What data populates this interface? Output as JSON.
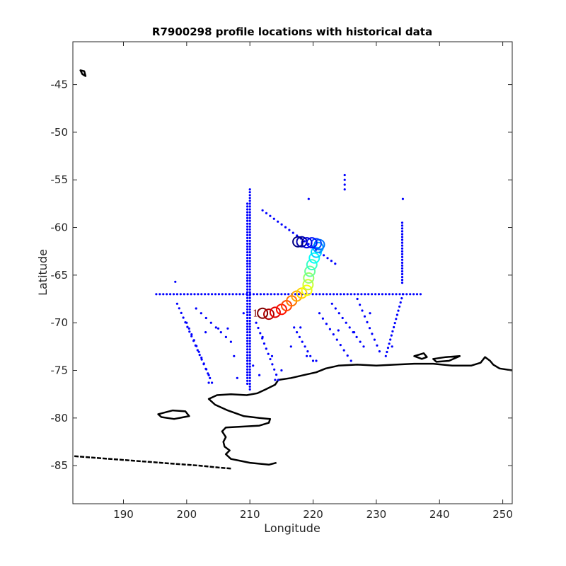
{
  "chart_data": {
    "type": "scatter",
    "title": "R7900298 profile locations with historical data",
    "xlabel": "Longitude",
    "ylabel": "Latitude",
    "xlim": [
      182,
      251.5
    ],
    "ylim": [
      -89,
      -40.5
    ],
    "xticks": [
      190,
      200,
      210,
      220,
      230,
      240,
      250
    ],
    "yticks": [
      -45,
      -50,
      -55,
      -60,
      -65,
      -70,
      -75,
      -80,
      -85
    ],
    "grid": false,
    "colors": {
      "historical": "#0000ff",
      "coastline": "#000000",
      "axes": "#262626"
    },
    "historical_data": {
      "horizontal_line": {
        "lat": -67,
        "lon_from": 195.2,
        "lon_to": 237.5,
        "step": 0.55
      },
      "vertical_lines": [
        {
          "lon": 209.6,
          "lat_from": -57.5,
          "lat_to": -76.6,
          "step": 0.3
        },
        {
          "lon": 210.0,
          "lat_from": -56.0,
          "lat_to": -77.0,
          "step": 0.3
        },
        {
          "lon": 234.1,
          "lat_from": -59.5,
          "lat_to": -66.0,
          "step": 0.3
        }
      ],
      "diagonal_lines": [
        {
          "from": [
            212.0,
            -58.2
          ],
          "to": [
            223.5,
            -63.8
          ],
          "n": 20
        },
        {
          "from": [
            198.5,
            -68.0
          ],
          "to": [
            204.0,
            -76.3
          ],
          "n": 18
        },
        {
          "from": [
            200.0,
            -70.0
          ],
          "to": [
            203.5,
            -75.5
          ],
          "n": 10
        },
        {
          "from": [
            201.5,
            -68.5
          ],
          "to": [
            207.0,
            -72.0
          ],
          "n": 8
        },
        {
          "from": [
            234.2,
            -67.0
          ],
          "to": [
            231.5,
            -73.5
          ],
          "n": 16
        },
        {
          "from": [
            223.0,
            -68.0
          ],
          "to": [
            228.0,
            -72.5
          ],
          "n": 10
        },
        {
          "from": [
            221.0,
            -69.0
          ],
          "to": [
            226.0,
            -74.0
          ],
          "n": 10
        },
        {
          "from": [
            227.0,
            -67.5
          ],
          "to": [
            230.5,
            -73.0
          ],
          "n": 10
        },
        {
          "from": [
            211.0,
            -70.0
          ],
          "to": [
            214.5,
            -76.0
          ],
          "n": 12
        },
        {
          "from": [
            217.0,
            -70.5
          ],
          "to": [
            220.0,
            -74.0
          ],
          "n": 8
        },
        {
          "from": [
            225.0,
            -54.5
          ],
          "to": [
            225.0,
            -56.0
          ],
          "n": 4
        }
      ],
      "scattered": [
        [
          198.2,
          -65.7
        ],
        [
          219.3,
          -57.0
        ],
        [
          234.2,
          -57.0
        ],
        [
          205.0,
          -70.6
        ],
        [
          206.5,
          -70.6
        ],
        [
          203.0,
          -71.0
        ],
        [
          207.5,
          -73.5
        ],
        [
          212.0,
          -71.5
        ],
        [
          213.5,
          -73.5
        ],
        [
          209.0,
          -69.0
        ],
        [
          210.5,
          -74.5
        ],
        [
          203.5,
          -76.3
        ],
        [
          208.0,
          -75.8
        ],
        [
          232.5,
          -72.5
        ],
        [
          219.0,
          -73.5
        ],
        [
          226.5,
          -71.0
        ],
        [
          229.0,
          -69.0
        ],
        [
          216.5,
          -72.5
        ],
        [
          215.0,
          -75.0
        ],
        [
          214.0,
          -76.0
        ],
        [
          211.5,
          -75.5
        ],
        [
          220.5,
          -74.0
        ],
        [
          224.0,
          -70.8
        ],
        [
          218.0,
          -70.5
        ]
      ]
    },
    "float_track": {
      "colormap": "jet",
      "start_label": "1",
      "points": [
        [
          212.0,
          -69.0
        ],
        [
          213.0,
          -69.1
        ],
        [
          214.0,
          -68.9
        ],
        [
          215.0,
          -68.6
        ],
        [
          215.8,
          -68.2
        ],
        [
          216.6,
          -67.7
        ],
        [
          217.4,
          -67.2
        ],
        [
          218.2,
          -66.9
        ],
        [
          219.0,
          -66.6
        ],
        [
          219.2,
          -66.0
        ],
        [
          219.3,
          -65.3
        ],
        [
          219.5,
          -64.6
        ],
        [
          219.8,
          -63.9
        ],
        [
          220.2,
          -63.2
        ],
        [
          220.5,
          -62.6
        ],
        [
          220.8,
          -62.1
        ],
        [
          221.0,
          -61.8
        ],
        [
          220.5,
          -61.7
        ],
        [
          219.8,
          -61.6
        ],
        [
          219.0,
          -61.6
        ],
        [
          218.2,
          -61.5
        ],
        [
          217.6,
          -61.5
        ]
      ]
    },
    "coastline": {
      "main": [
        [
          207.0,
          -85.3
        ],
        [
          205.0,
          -85.2
        ],
        [
          202.0,
          -85.0
        ],
        [
          198.0,
          -84.8
        ],
        [
          194.0,
          -84.6
        ],
        [
          190.0,
          -84.4
        ],
        [
          186.0,
          -84.2
        ],
        [
          182.2,
          -84.0
        ]
      ],
      "continent": [
        [
          214.2,
          -84.7
        ],
        [
          213.0,
          -84.9
        ],
        [
          210.0,
          -84.7
        ],
        [
          208.5,
          -84.5
        ],
        [
          207.0,
          -84.3
        ],
        [
          206.2,
          -83.8
        ],
        [
          206.8,
          -83.4
        ],
        [
          206.0,
          -83.0
        ],
        [
          205.8,
          -82.5
        ],
        [
          206.2,
          -82.0
        ],
        [
          205.6,
          -81.4
        ],
        [
          206.2,
          -81.0
        ],
        [
          209.0,
          -80.9
        ],
        [
          211.5,
          -80.8
        ],
        [
          213.0,
          -80.5
        ],
        [
          213.2,
          -80.1
        ],
        [
          211.5,
          -80.0
        ],
        [
          209.0,
          -79.8
        ],
        [
          206.5,
          -79.2
        ],
        [
          204.5,
          -78.6
        ],
        [
          203.5,
          -78.0
        ],
        [
          204.8,
          -77.6
        ],
        [
          207.0,
          -77.5
        ],
        [
          209.5,
          -77.6
        ],
        [
          211.2,
          -77.4
        ],
        [
          212.5,
          -77.0
        ],
        [
          214.0,
          -76.5
        ],
        [
          214.5,
          -76.0
        ],
        [
          216.5,
          -75.8
        ],
        [
          218.5,
          -75.5
        ],
        [
          220.5,
          -75.2
        ],
        [
          222.0,
          -74.8
        ],
        [
          224.0,
          -74.5
        ],
        [
          227.0,
          -74.4
        ],
        [
          230.0,
          -74.5
        ],
        [
          233.0,
          -74.4
        ],
        [
          236.0,
          -74.3
        ],
        [
          239.0,
          -74.3
        ],
        [
          242.0,
          -74.5
        ],
        [
          245.0,
          -74.5
        ],
        [
          246.5,
          -74.2
        ],
        [
          247.2,
          -73.6
        ],
        [
          248.0,
          -74.0
        ],
        [
          248.5,
          -74.4
        ],
        [
          249.5,
          -74.8
        ],
        [
          251.5,
          -75.0
        ]
      ],
      "islands": [
        [
          [
            195.5,
            -79.6
          ],
          [
            197.8,
            -79.2
          ],
          [
            199.8,
            -79.3
          ],
          [
            200.4,
            -79.8
          ],
          [
            198.0,
            -80.1
          ],
          [
            196.0,
            -79.9
          ],
          [
            195.5,
            -79.6
          ]
        ],
        [
          [
            236.0,
            -73.5
          ],
          [
            237.5,
            -73.2
          ],
          [
            238.0,
            -73.6
          ],
          [
            237.2,
            -73.8
          ],
          [
            236.0,
            -73.5
          ]
        ],
        [
          [
            239.0,
            -73.8
          ],
          [
            241.0,
            -73.6
          ],
          [
            243.2,
            -73.5
          ],
          [
            241.5,
            -74.0
          ],
          [
            239.5,
            -74.1
          ],
          [
            239.0,
            -73.8
          ]
        ],
        [
          [
            183.2,
            -43.5
          ],
          [
            183.8,
            -43.6
          ],
          [
            184.0,
            -44.1
          ],
          [
            183.5,
            -43.9
          ],
          [
            183.2,
            -43.5
          ]
        ]
      ]
    }
  }
}
